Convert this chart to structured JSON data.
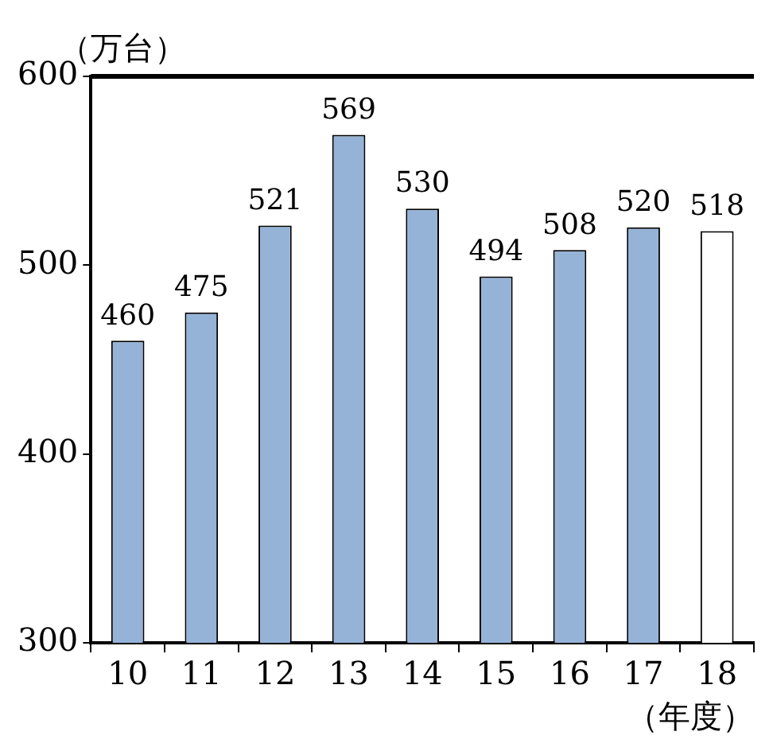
{
  "chart_data": {
    "type": "bar",
    "ylabel": "（万台）",
    "xlabel": "（年度）",
    "categories": [
      "10",
      "11",
      "12",
      "13",
      "14",
      "15",
      "16",
      "17",
      "18"
    ],
    "series": [
      {
        "color": "#95b3d7",
        "values": [
          460,
          475,
          521,
          569,
          530,
          494,
          508,
          520,
          null
        ]
      },
      {
        "color": "#ffffff",
        "values": [
          null,
          null,
          null,
          null,
          null,
          null,
          null,
          null,
          518
        ]
      }
    ],
    "ylim": [
      300,
      600
    ],
    "yticks": [
      300,
      400,
      500,
      600
    ],
    "grid": false,
    "legend": false,
    "data_labels": true
  }
}
